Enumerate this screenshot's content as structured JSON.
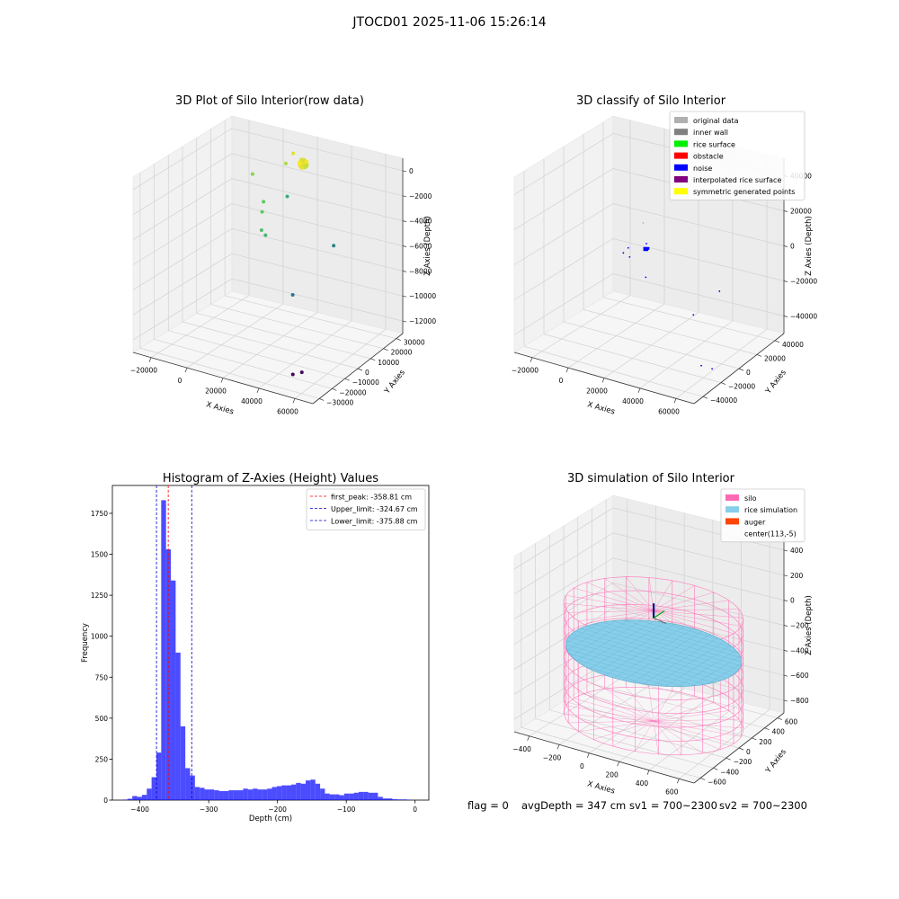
{
  "figure": {
    "suptitle": "JTOCD01 2025-11-06 15:26:14"
  },
  "status": {
    "flag": "flag = 0",
    "avg_depth": "avgDepth = 347 cm",
    "sv1": "sv1 = 700~2300",
    "sv2": "sv2 = 700~2300"
  },
  "chart_data": [
    {
      "type": "scatter3d",
      "title": "3D Plot of Silo Interior(row data)",
      "xlabel": "X Axies",
      "ylabel": "Y Axies",
      "zlabel": "Z Axies (Depth)",
      "x_ticks": [
        "−20000",
        "0",
        "20000",
        "40000",
        "60000"
      ],
      "y_ticks": [
        "−30000",
        "−20000",
        "−10000",
        "0",
        "10000",
        "20000",
        "30000"
      ],
      "z_ticks": [
        "−12000",
        "−10000",
        "−8000",
        "−6000",
        "−4000",
        "−2000",
        "0"
      ],
      "xlim": [
        -32000,
        66000
      ],
      "ylim": [
        -34000,
        36000
      ],
      "zlim": [
        -13500,
        800
      ],
      "colormap": "viridis",
      "points": [
        {
          "x": 52000,
          "y": -30000,
          "z": -12000,
          "c": 0.02
        },
        {
          "x": 60000,
          "y": -34000,
          "z": -11200,
          "c": 0.03
        },
        {
          "x": 35000,
          "y": -8000,
          "z": -7800,
          "c": 0.4
        },
        {
          "x": 45000,
          "y": 8000,
          "z": -4500,
          "c": 0.45
        },
        {
          "x": 8000,
          "y": 5000,
          "z": -4600,
          "c": 0.7
        },
        {
          "x": 6000,
          "y": 8000,
          "z": -3400,
          "c": 0.75
        },
        {
          "x": -4000,
          "y": 22000,
          "z": -4000,
          "c": 0.75
        },
        {
          "x": -10000,
          "y": 22000,
          "z": -2000,
          "c": 0.82
        },
        {
          "x": 2000,
          "y": 30000,
          "z": -1200,
          "c": 0.88
        },
        {
          "x": 6000,
          "y": 30000,
          "z": -200,
          "c": 0.95
        },
        {
          "x": 12000,
          "y": 18000,
          "z": -2600,
          "c": 0.62
        },
        {
          "x": 14000,
          "y": 0,
          "z": -4400,
          "c": 0.66
        }
      ],
      "cluster": {
        "x": 14500,
        "y": 26000,
        "z": -400,
        "c": 1.0,
        "count": 30
      }
    },
    {
      "type": "scatter3d",
      "title": "3D classify of Silo Interior",
      "xlabel": "X Axies",
      "ylabel": "Y Axies",
      "zlabel": "Z Axies (Depth)",
      "x_ticks": [
        "−20000",
        "0",
        "20000",
        "40000",
        "60000"
      ],
      "y_ticks": [
        "−40000",
        "−20000",
        "0",
        "20000",
        "40000"
      ],
      "z_ticks": [
        "−40000",
        "−20000",
        "0",
        "20000",
        "40000"
      ],
      "xlim": [
        -32000,
        66000
      ],
      "ylim": [
        -52000,
        50000
      ],
      "zlim": [
        -52000,
        50000
      ],
      "legend": {
        "position": "upper-right",
        "items": [
          {
            "label": "original data",
            "color": "#b0b0b0"
          },
          {
            "label": "inner wall",
            "color": "#808080"
          },
          {
            "label": "rice surface",
            "color": "#00ee00"
          },
          {
            "label": "obstacle",
            "color": "#ff0000"
          },
          {
            "label": "noise",
            "color": "#0000ff"
          },
          {
            "label": "interpolated rice surface",
            "color": "#800080"
          },
          {
            "label": "symmetric generated points",
            "color": "#ffff00"
          }
        ]
      },
      "points": [
        {
          "x": 0,
          "y": 0,
          "z": -2500,
          "class": "noise"
        },
        {
          "x": 52000,
          "y": -18000,
          "z": -46000,
          "class": "noise"
        },
        {
          "x": 60000,
          "y": -22000,
          "z": -44000,
          "class": "noise"
        },
        {
          "x": 35000,
          "y": 6000,
          "z": -30000,
          "class": "noise"
        },
        {
          "x": 45000,
          "y": 14000,
          "z": -16000,
          "class": "noise"
        },
        {
          "x": 8000,
          "y": 8000,
          "z": -17000,
          "class": "noise"
        },
        {
          "x": -4000,
          "y": 14000,
          "z": -11000,
          "class": "noise"
        },
        {
          "x": -10000,
          "y": 24000,
          "z": -11000,
          "class": "noise"
        },
        {
          "x": 2000,
          "y": 20000,
          "z": -3500,
          "class": "noise"
        },
        {
          "x": -4000,
          "y": 28000,
          "z": 4000,
          "class": "original data"
        }
      ],
      "cluster": {
        "x": 6000,
        "y": 12000,
        "z": -2500,
        "class": "noise",
        "count": 14
      }
    },
    {
      "type": "bar",
      "title": "Histogram of Z-Axies (Height) Values",
      "xlabel": "Depth (cm)",
      "ylabel": "Frequency",
      "xlim": [
        -440,
        20
      ],
      "ylim": [
        0,
        1920
      ],
      "x_ticks": [
        -400,
        -300,
        -200,
        -100,
        0
      ],
      "x_tick_labels": [
        "−400",
        "−300",
        "−200",
        "−100",
        "0"
      ],
      "y_ticks": [
        0,
        250,
        500,
        750,
        1000,
        1250,
        1500,
        1750
      ],
      "bar_color": "#0000ff",
      "bin_edges": [
        -425,
        -418,
        -411,
        -404,
        -397,
        -390,
        -383,
        -376,
        -369,
        -362,
        -355,
        -348,
        -341,
        -334,
        -327,
        -320,
        -313,
        -306,
        -299,
        -292,
        -285,
        -278,
        -271,
        -264,
        -257,
        -250,
        -243,
        -236,
        -229,
        -222,
        -215,
        -208,
        -201,
        -194,
        -187,
        -180,
        -173,
        -166,
        -159,
        -152,
        -145,
        -138,
        -131,
        -124,
        -117,
        -110,
        -103,
        -96,
        -89,
        -82,
        -75,
        -68,
        -61,
        -54,
        -47,
        -40,
        -33,
        -26,
        -19,
        -12,
        -5
      ],
      "values": [
        3,
        8,
        25,
        20,
        32,
        70,
        140,
        290,
        1830,
        1530,
        1340,
        900,
        450,
        195,
        150,
        80,
        75,
        65,
        65,
        60,
        55,
        55,
        60,
        60,
        60,
        70,
        65,
        70,
        65,
        65,
        70,
        80,
        85,
        90,
        90,
        95,
        105,
        100,
        120,
        125,
        100,
        70,
        40,
        35,
        35,
        30,
        40,
        40,
        45,
        50,
        50,
        45,
        45,
        20,
        10,
        10,
        5,
        4,
        4,
        2
      ],
      "reference_lines": [
        {
          "label": "first_peak: -358.81 cm",
          "x": -358.81,
          "color": "#ff0000",
          "style": "dashed"
        },
        {
          "label": "Upper_limit: -324.67 cm",
          "x": -324.67,
          "color": "#0000cc",
          "style": "dashed"
        },
        {
          "label": "Lower_limit: -375.88 cm",
          "x": -375.88,
          "color": "#0000cc",
          "style": "dashed"
        }
      ],
      "legend": {
        "position": "upper-right"
      }
    },
    {
      "type": "surface3d",
      "title": "3D simulation of Silo Interior",
      "xlabel": "X Axies",
      "ylabel": "Y Axies",
      "zlabel": "Z Axies (Depth)",
      "x_ticks": [
        "−400",
        "−200",
        "0",
        "200",
        "400",
        "600"
      ],
      "y_ticks": [
        "−600",
        "−400",
        "−200",
        "0",
        "200",
        "400",
        "600"
      ],
      "z_ticks": [
        "−800",
        "−600",
        "−400",
        "−200",
        "0",
        "200",
        "400"
      ],
      "xlim": [
        -520,
        740
      ],
      "ylim": [
        -680,
        680
      ],
      "zlim": [
        -950,
        480
      ],
      "silo": {
        "center_x": 113,
        "center_y": -5,
        "radius": 560,
        "z_top": 0,
        "z_bottom": -900
      },
      "rice_surface_z": -347,
      "auger": {
        "x": 113,
        "y": -5,
        "z_top": 60,
        "z_bottom": -60
      },
      "legend": {
        "position": "upper-right",
        "items": [
          {
            "label": "silo",
            "color": "#ff69b4"
          },
          {
            "label": "rice simulation",
            "color": "#87ceeb"
          },
          {
            "label": "auger",
            "color": "#ff4500"
          },
          {
            "label": "center(113,-5)",
            "color": ""
          }
        ]
      }
    }
  ]
}
